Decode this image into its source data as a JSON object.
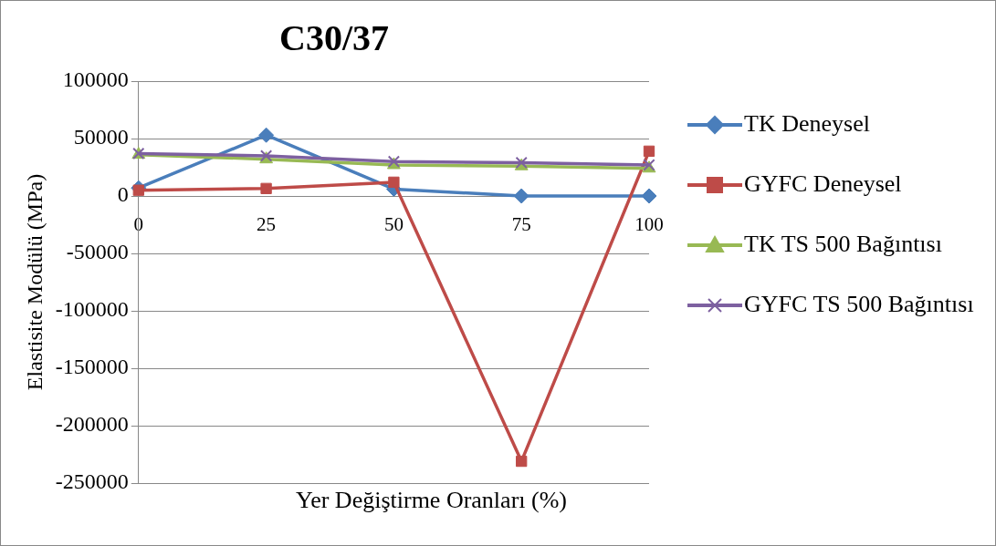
{
  "chart_data": {
    "type": "line",
    "title": "C30/37",
    "xlabel": "Yer Değiştirme Oranları (%)",
    "ylabel": "Elastisite Modülü (MPa)",
    "categories": [
      "0",
      "25",
      "50",
      "75",
      "100"
    ],
    "series": [
      {
        "name": "TK Deneysel",
        "color": "#4a7ebb",
        "marker": "diamond",
        "values": [
          7000,
          53000,
          6000,
          0,
          0
        ]
      },
      {
        "name": "GYFC Deneysel",
        "color": "#be4b48",
        "marker": "square",
        "values": [
          5000,
          6500,
          12000,
          -231000,
          39000
        ]
      },
      {
        "name": "TK TS 500 Bağıntısı",
        "color": "#98b954",
        "marker": "triangle",
        "values": [
          36000,
          32000,
          27000,
          26000,
          24000
        ]
      },
      {
        "name": "GYFC TS 500 Bağıntısı",
        "color": "#7d60a0",
        "marker": "cross",
        "values": [
          37000,
          35000,
          30000,
          29000,
          27000
        ]
      }
    ],
    "ylim": [
      -250000,
      100000
    ],
    "yticks": [
      -250000,
      -200000,
      -150000,
      -100000,
      -50000,
      0,
      50000,
      100000
    ],
    "grid": "y",
    "legend": "right",
    "line_style": "solid"
  }
}
